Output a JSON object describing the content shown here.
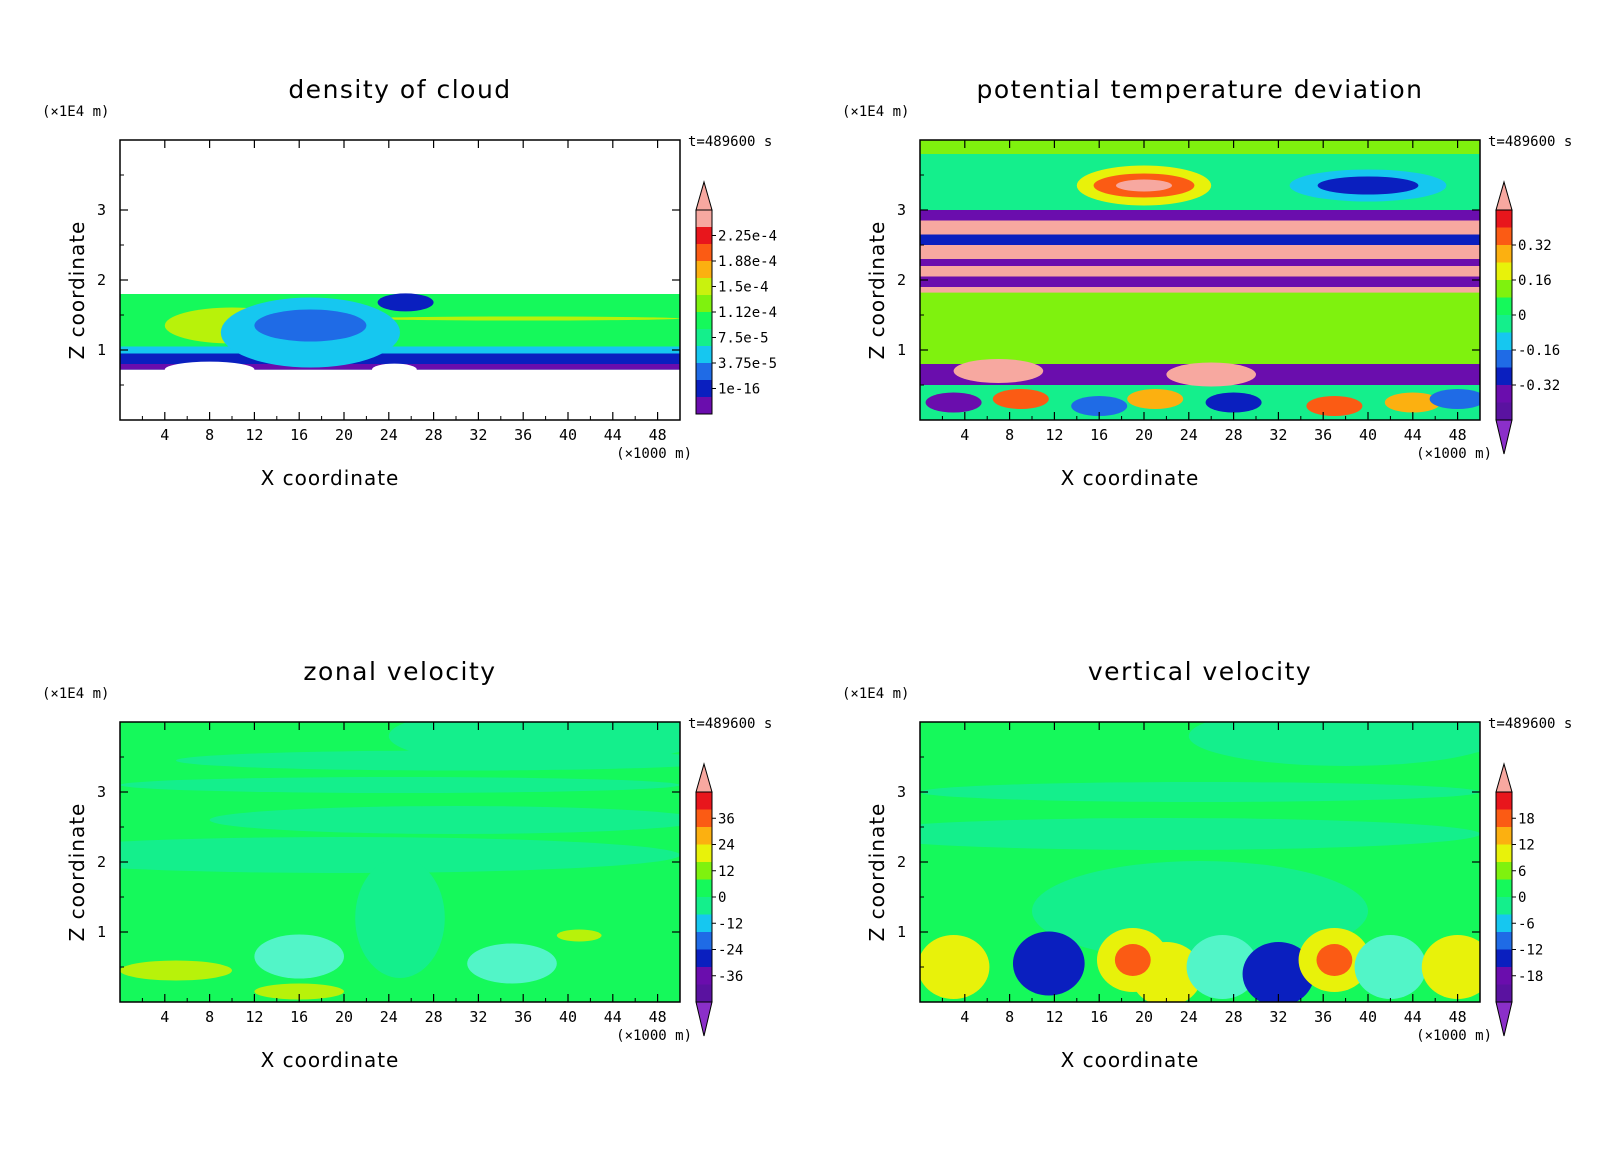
{
  "chart_data": [
    {
      "type": "heatmap",
      "title": "density of cloud",
      "xlabel": "X coordinate",
      "ylabel": "Z coordinate",
      "x_unit": "(×1000 m)",
      "y_unit": "(×1E4 m)",
      "time_label": "t=489600 s",
      "xlim": [
        0,
        50
      ],
      "ylim": [
        0,
        4
      ],
      "x_ticks": [
        4,
        8,
        12,
        16,
        20,
        24,
        28,
        32,
        36,
        40,
        44,
        48
      ],
      "y_ticks": [
        1,
        2,
        3
      ],
      "colorbar_labels": [
        "2.25e-4",
        "1.88e-4",
        "1.5e-4",
        "1.12e-4",
        "7.5e-5",
        "3.75e-5",
        "1e-16"
      ],
      "colorbar_extends": [
        "max"
      ]
    },
    {
      "type": "heatmap",
      "title": "potential temperature deviation",
      "xlabel": "X coordinate",
      "ylabel": "Z coordinate",
      "x_unit": "(×1000 m)",
      "y_unit": "(×1E4 m)",
      "time_label": "t=489600 s",
      "xlim": [
        0,
        50
      ],
      "ylim": [
        0,
        4
      ],
      "x_ticks": [
        4,
        8,
        12,
        16,
        20,
        24,
        28,
        32,
        36,
        40,
        44,
        48
      ],
      "y_ticks": [
        1,
        2,
        3
      ],
      "colorbar_labels": [
        "0.32",
        "0.16",
        "0",
        "-0.16",
        "-0.32"
      ],
      "colorbar_extends": [
        "max",
        "min"
      ]
    },
    {
      "type": "heatmap",
      "title": "zonal velocity",
      "xlabel": "X coordinate",
      "ylabel": "Z coordinate",
      "x_unit": "(×1000 m)",
      "y_unit": "(×1E4 m)",
      "time_label": "t=489600 s",
      "xlim": [
        0,
        50
      ],
      "ylim": [
        0,
        4
      ],
      "x_ticks": [
        4,
        8,
        12,
        16,
        20,
        24,
        28,
        32,
        36,
        40,
        44,
        48
      ],
      "y_ticks": [
        1,
        2,
        3
      ],
      "colorbar_labels": [
        "36",
        "24",
        "12",
        "0",
        "-12",
        "-24",
        "-36"
      ],
      "colorbar_extends": [
        "max",
        "min"
      ]
    },
    {
      "type": "heatmap",
      "title": "vertical velocity",
      "xlabel": "X coordinate",
      "ylabel": "Z coordinate",
      "x_unit": "(×1000 m)",
      "y_unit": "(×1E4 m)",
      "time_label": "t=489600 s",
      "xlim": [
        0,
        50
      ],
      "ylim": [
        0,
        4
      ],
      "x_ticks": [
        4,
        8,
        12,
        16,
        20,
        24,
        28,
        32,
        36,
        40,
        44,
        48
      ],
      "y_ticks": [
        1,
        2,
        3
      ],
      "colorbar_labels": [
        "18",
        "12",
        "6",
        "0",
        "-6",
        "-12",
        "-18"
      ],
      "colorbar_extends": [
        "max",
        "min"
      ]
    }
  ],
  "colors": {
    "levels_low_to_high": [
      "#6a0dad",
      "#0a1fbf",
      "#1f6be6",
      "#16c7f0",
      "#14ef8c",
      "#15f95b",
      "#7ff20e",
      "#e8f20a",
      "#fcb010",
      "#fb5b14",
      "#e8161c",
      "#f7a8a0"
    ],
    "background_mid": "#15f95b",
    "background_green": "#18f57a"
  }
}
